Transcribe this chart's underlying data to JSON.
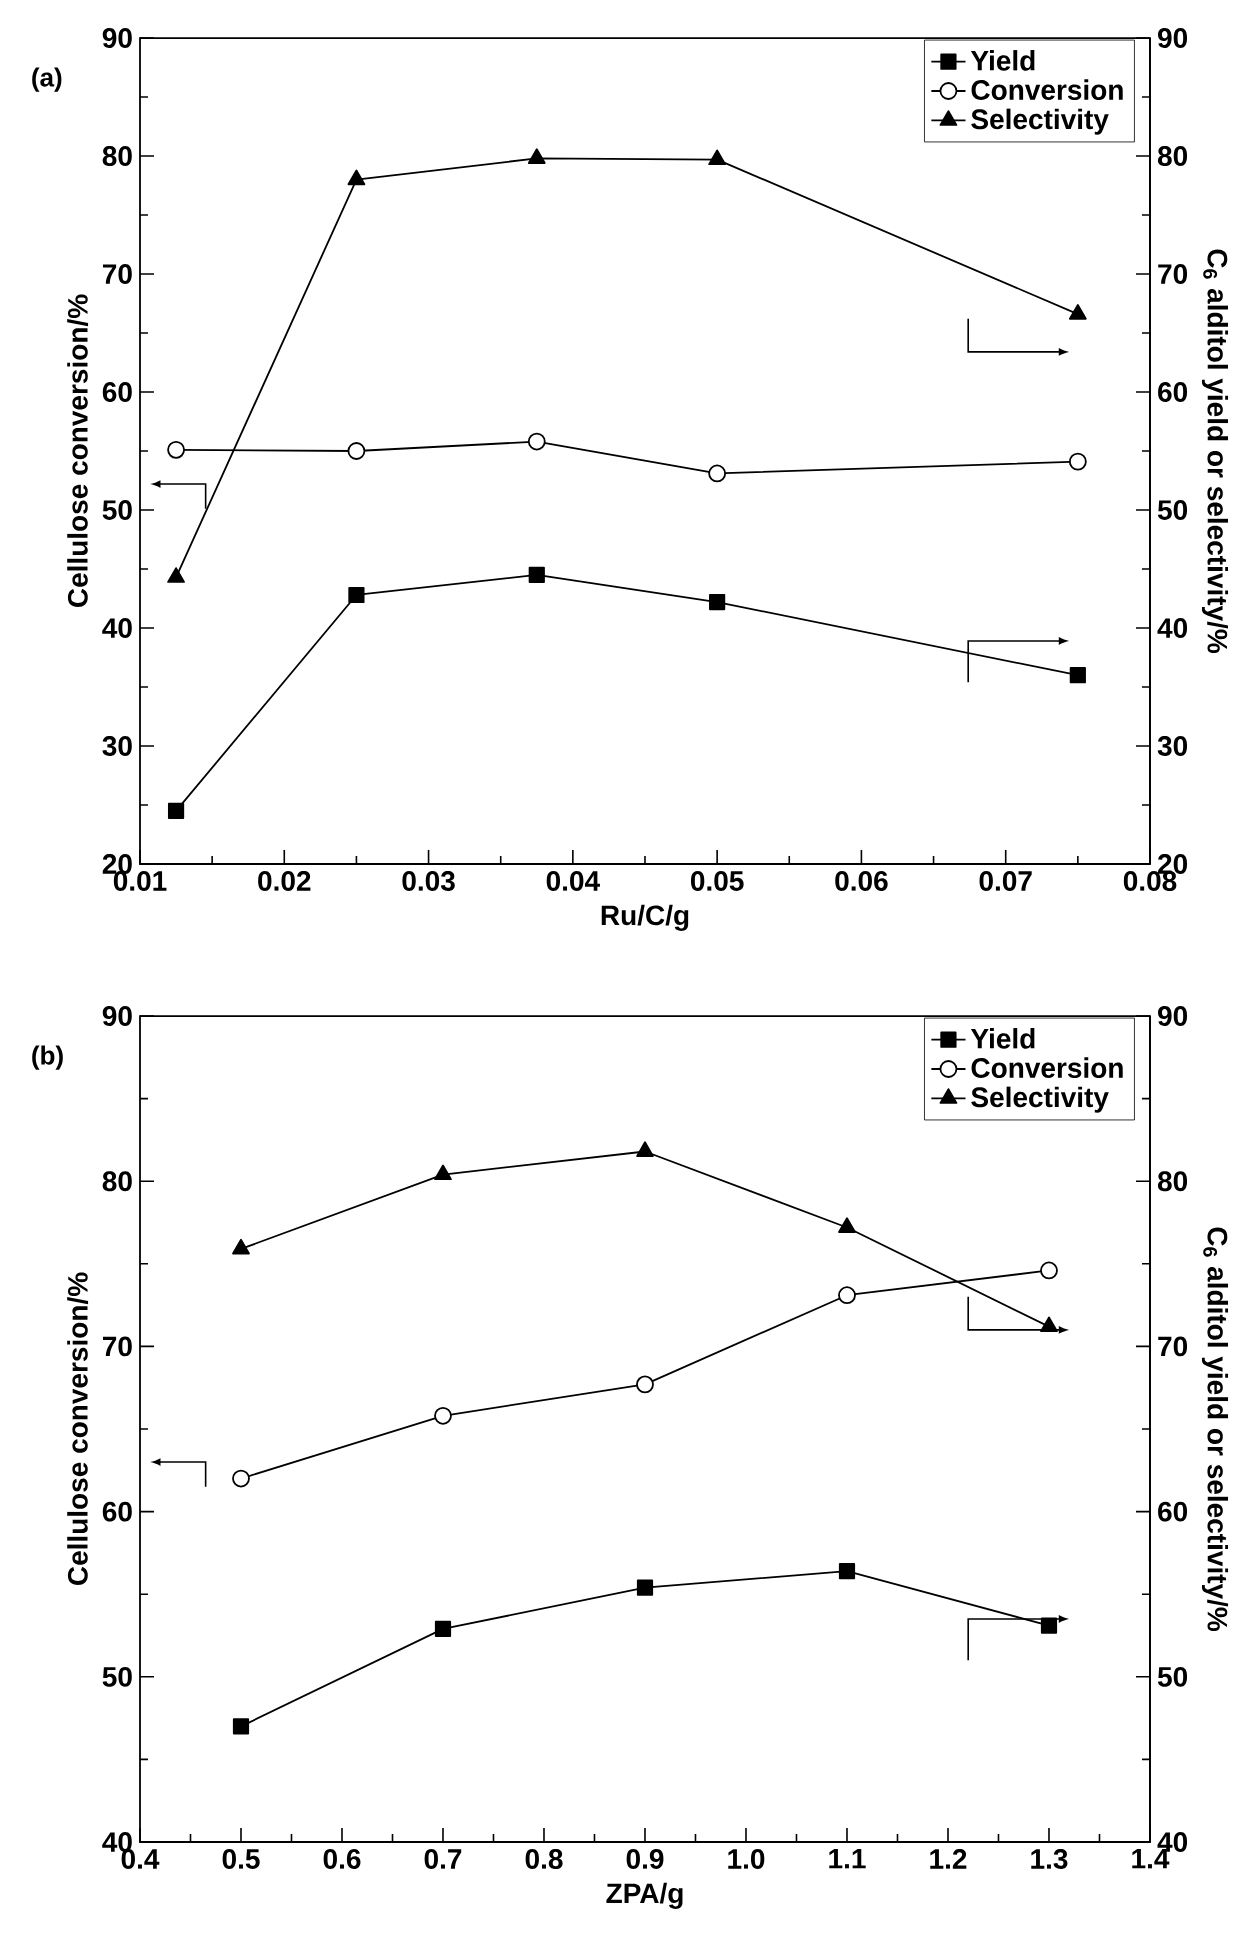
{
  "chart_data": [
    {
      "type": "line",
      "title": "(a)",
      "xlabel": "Ru/C/g",
      "ylabel": "Cellulose conversion/%",
      "y2label": "C$_{6}$ alditol yield or selectivity/%",
      "x": [
        0.0125,
        0.025,
        0.0375,
        0.05,
        0.075
      ],
      "series": [
        {
          "name": "Yield",
          "color": "#000000",
          "marker": "square",
          "axis": "y2",
          "values": [
            24.5,
            42.8,
            44.5,
            42.2,
            36.0
          ]
        },
        {
          "name": "Conversion",
          "color": "#000000",
          "marker": "circle",
          "values": [
            55.1,
            55.0,
            55.8,
            53.1,
            54.1
          ]
        },
        {
          "name": "Selectivity",
          "color": "#000000",
          "marker": "triangle",
          "axis": "y2",
          "values": [
            44.3,
            78.0,
            79.8,
            79.7,
            66.6
          ]
        }
      ],
      "xlim": [
        0.01,
        0.08
      ],
      "xticks": [
        0.01,
        0.02,
        0.03,
        0.04,
        0.05,
        0.06,
        0.07,
        0.08
      ],
      "ylim": [
        20,
        90
      ],
      "yticks": [
        20,
        30,
        40,
        50,
        60,
        70,
        80,
        90
      ],
      "y2lim": [
        20,
        90
      ],
      "y2ticks": [
        20,
        30,
        40,
        50,
        60,
        70,
        80,
        90
      ],
      "legend": "top right"
    },
    {
      "type": "line",
      "title": "(b)",
      "xlabel": "ZPA/g",
      "ylabel": "Cellulose conversion/%",
      "y2label": "C$_{6}$ alditol yield or selectivity/%",
      "x": [
        0.5,
        0.7,
        0.9,
        1.1,
        1.3
      ],
      "series": [
        {
          "name": "Yield",
          "color": "#000000",
          "marker": "square",
          "axis": "y2",
          "values": [
            47.0,
            52.9,
            55.4,
            56.4,
            53.1
          ]
        },
        {
          "name": "Conversion",
          "color": "#000000",
          "marker": "circle",
          "values": [
            62.0,
            65.8,
            67.7,
            73.1,
            74.6
          ]
        },
        {
          "name": "Selectivity",
          "color": "#000000",
          "marker": "triangle",
          "axis": "y2",
          "values": [
            75.9,
            80.4,
            81.8,
            77.2,
            71.2
          ]
        }
      ],
      "xlim": [
        0.4,
        1.4
      ],
      "xticks": [
        0.4,
        0.5,
        0.6,
        0.7,
        0.8,
        0.9,
        {
          "value": 1,
          "label": "1.0"
        },
        1.1,
        1.2,
        1.3,
        1.4
      ],
      "ylim": [
        40,
        90
      ],
      "yticks": [
        40,
        50,
        60,
        70,
        80,
        90
      ],
      "y2lim": [
        40,
        90
      ],
      "y2ticks": [
        40,
        50,
        60,
        70,
        80,
        90
      ],
      "legend": "top right"
    }
  ]
}
